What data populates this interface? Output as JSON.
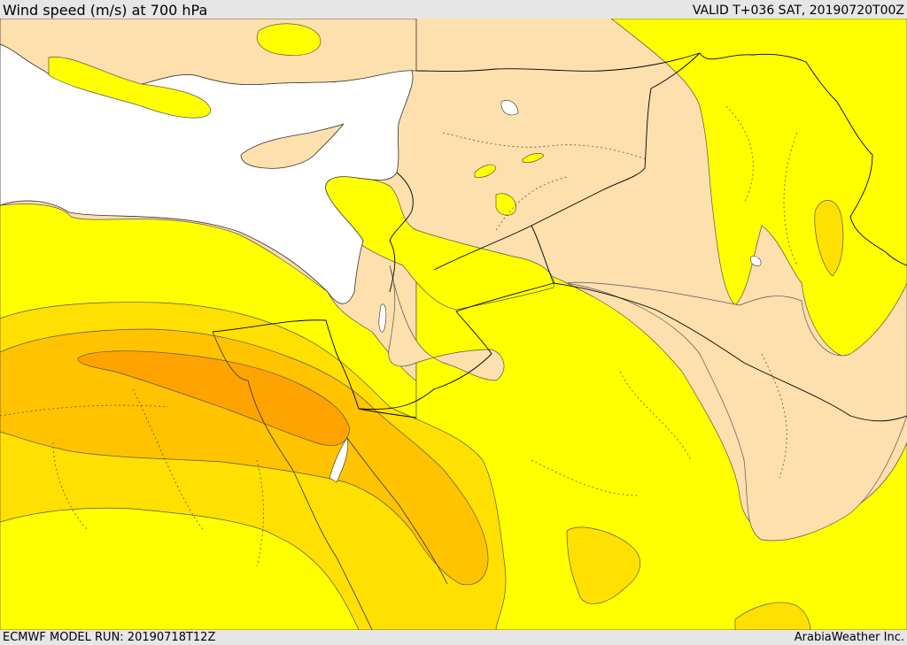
{
  "header": {
    "title": "Wind speed (m/s) at 700 hPa",
    "valid_time": "VALID T+036 SAT, 20190720T00Z"
  },
  "footer": {
    "model_run": "ECMWF MODEL RUN: 20190718T12Z",
    "credit": "ArabiaWeather Inc."
  },
  "colors": {
    "background_land": "#fde0ad",
    "sea": "#ffffff",
    "wind_band_1": "#ffff00",
    "wind_band_2": "#ffe000",
    "wind_band_3": "#ffc300",
    "wind_band_4": "#ffa300",
    "contour": "#555555",
    "border": "#000000"
  }
}
